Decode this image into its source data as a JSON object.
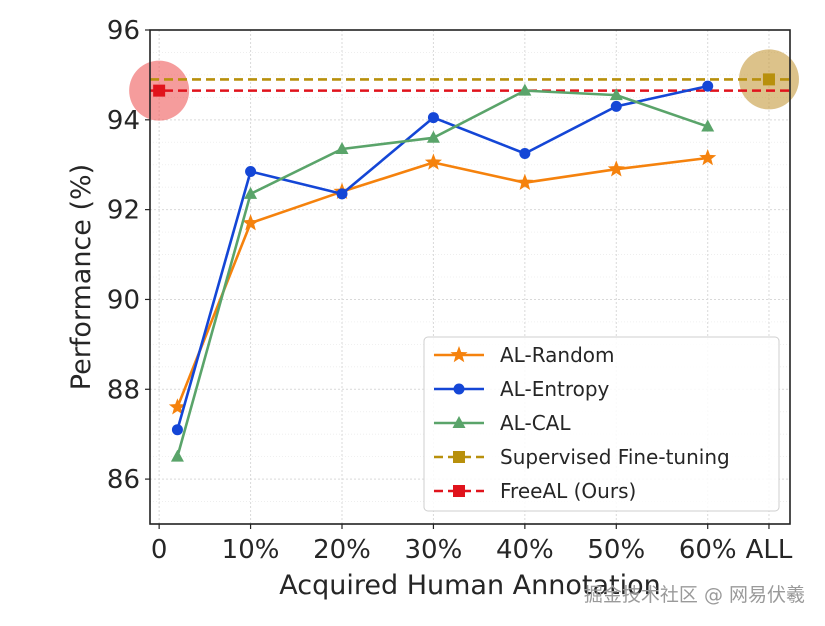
{
  "chart_data": {
    "type": "line",
    "xlabel": "Acquired Human Annotation",
    "ylabel": "Performance (%)",
    "x_ticks": [
      {
        "pos": 0,
        "label": "0"
      },
      {
        "pos": 1,
        "label": "10%"
      },
      {
        "pos": 2,
        "label": "20%"
      },
      {
        "pos": 3,
        "label": "30%"
      },
      {
        "pos": 4,
        "label": "40%"
      },
      {
        "pos": 5,
        "label": "50%"
      },
      {
        "pos": 6,
        "label": "60%"
      },
      {
        "pos": 6.67,
        "label": "ALL"
      }
    ],
    "xlim": [
      -0.1,
      6.9
    ],
    "y_ticks": [
      86,
      88,
      90,
      92,
      94,
      96
    ],
    "ylim": [
      85,
      96
    ],
    "grid": true,
    "legend_position": "lower-right",
    "x": [
      0.2,
      1,
      2,
      3,
      4,
      5,
      6
    ],
    "series": [
      {
        "name": "AL-Random",
        "color": "#f5820d",
        "marker": "star",
        "style": "solid",
        "values": [
          87.6,
          91.7,
          92.4,
          93.05,
          92.6,
          92.9,
          93.15
        ]
      },
      {
        "name": "AL-Entropy",
        "color": "#1446d6",
        "marker": "circle",
        "style": "solid",
        "values": [
          87.1,
          92.85,
          92.35,
          94.05,
          93.25,
          94.3,
          94.75
        ]
      },
      {
        "name": "AL-CAL",
        "color": "#5aa46a",
        "marker": "triangle",
        "style": "solid",
        "values": [
          86.5,
          92.35,
          93.35,
          93.6,
          94.65,
          94.55,
          93.85
        ]
      }
    ],
    "reference_lines": [
      {
        "name": "Supervised Fine-tuning",
        "color": "#b8900c",
        "marker": "square",
        "style": "dashed",
        "value": 94.9,
        "highlight_x": 6.67,
        "highlight_color": "#c49a3c"
      },
      {
        "name": "FreeAL (Ours)",
        "color": "#e0131c",
        "marker": "square",
        "style": "dashed",
        "value": 94.65,
        "highlight_x": 0,
        "highlight_color": "#ee5a5a"
      }
    ]
  },
  "watermark": "掘金技术社区 @ 网易伏羲"
}
